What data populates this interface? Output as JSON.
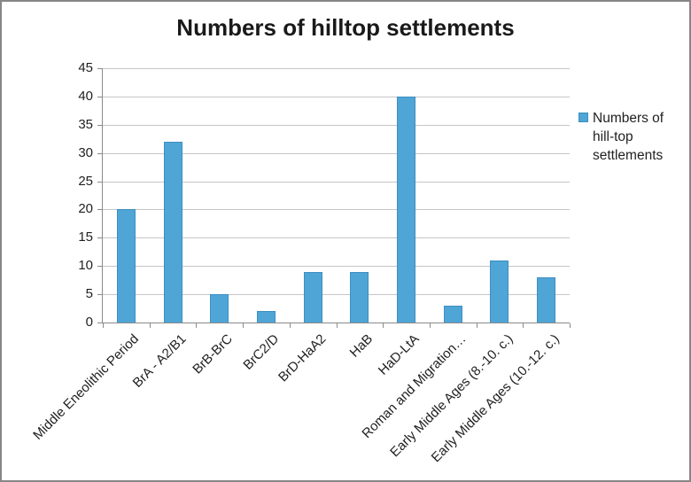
{
  "chart": {
    "title": "Numbers of hilltop settlements",
    "legend": {
      "label": "Numbers of hill-top settlements"
    }
  },
  "chart_data": {
    "type": "bar",
    "title": "Numbers of hilltop settlements",
    "categories": [
      "Middle Eneolithic Period",
      "BrA - A2/B1",
      "BrB-BrC",
      "BrC2/D",
      "BrD-HaA2",
      "HaB",
      "HaD-LtA",
      "Roman and Migration…",
      "Early Middle Ages (8.-10. c.)",
      "Early Middle Ages (10.-12. c.)"
    ],
    "series": [
      {
        "name": "Numbers of hill-top settlements",
        "values": [
          20,
          32,
          5,
          2,
          9,
          9,
          40,
          3,
          11,
          8
        ]
      }
    ],
    "xlabel": "",
    "ylabel": "",
    "ylim": [
      0,
      45
    ],
    "yticks": [
      0,
      5,
      10,
      15,
      20,
      25,
      30,
      35,
      40,
      45
    ],
    "grid": true,
    "legend_position": "right",
    "x_label_rotation_deg": -45,
    "colors": {
      "bar_fill": "#4FA5D6",
      "bar_border": "#3E8FC2",
      "gridline": "#c6c6c6",
      "axis": "#8a8a8a",
      "text": "#1f1f1f"
    }
  }
}
